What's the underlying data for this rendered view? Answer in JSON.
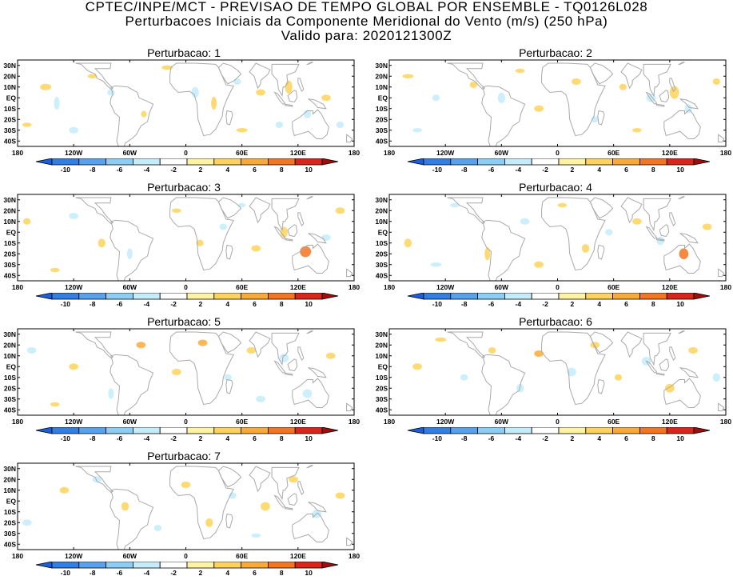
{
  "title": {
    "line1": "CPTEC/INPE/MCT - PREVISAO DE TEMPO GLOBAL POR ENSEMBLE - TQ0126L028",
    "line2": "Perturbacoes Iniciais da Componente Meridional do Vento (m/s) (250 hPa)",
    "line3": "Valido para: 2020121300Z"
  },
  "panels": [
    {
      "title": "Perturbacao: 1"
    },
    {
      "title": "Perturbacao: 2"
    },
    {
      "title": "Perturbacao: 3"
    },
    {
      "title": "Perturbacao: 4"
    },
    {
      "title": "Perturbacao: 5"
    },
    {
      "title": "Perturbacao: 6"
    },
    {
      "title": "Perturbacao: 7"
    }
  ],
  "lat_labels": [
    "30N",
    "20N",
    "10N",
    "EQ",
    "10S",
    "20S",
    "30S",
    "40S"
  ],
  "lon_labels": [
    "180",
    "120W",
    "60W",
    "0",
    "60E",
    "120E",
    "180"
  ],
  "colorbar": {
    "levels": [
      "-10",
      "-8",
      "-6",
      "-4",
      "-2",
      "2",
      "4",
      "6",
      "8",
      "10"
    ],
    "colors": [
      "#1e5ed8",
      "#2f7fe6",
      "#57a2ef",
      "#8ccdf5",
      "#c4ecfb",
      "#ffffff",
      "#fff2a0",
      "#fdd35c",
      "#fbaa38",
      "#f47420",
      "#d7261c",
      "#9e0e0e"
    ]
  }
}
